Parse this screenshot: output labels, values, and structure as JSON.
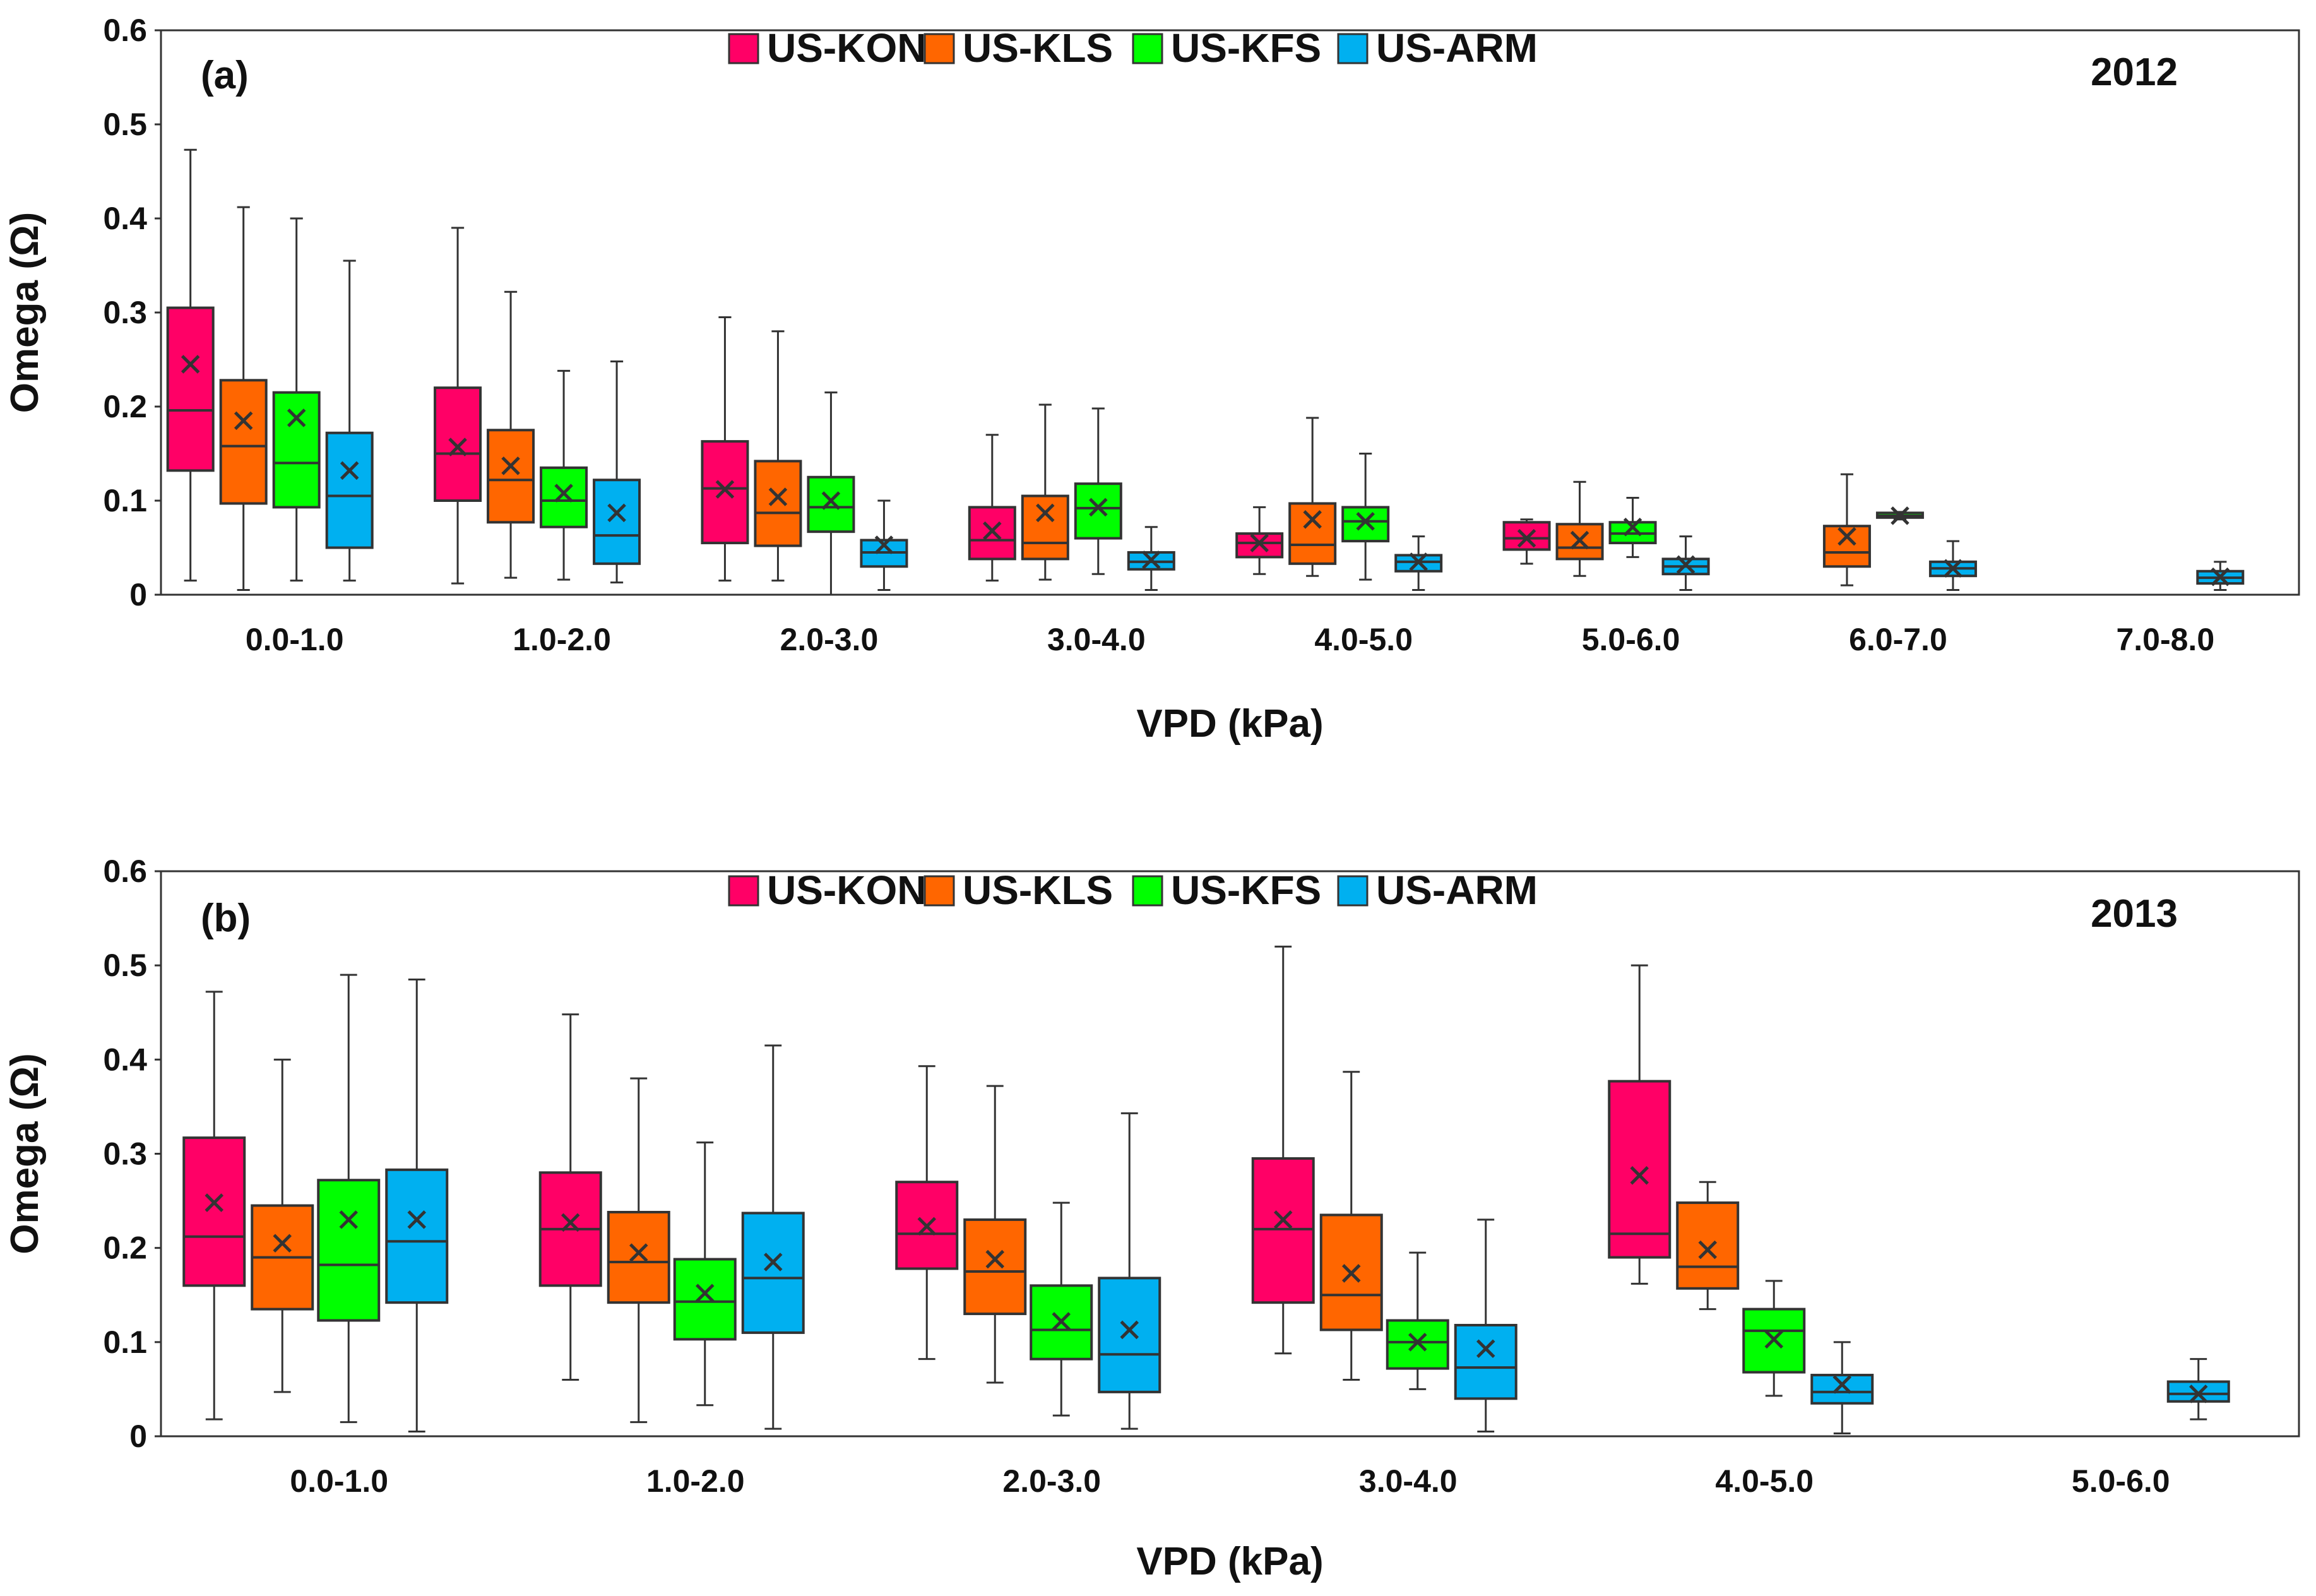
{
  "chart_data": [
    {
      "type": "box",
      "panel_label": "(a)",
      "year": "2012",
      "xlabel": "VPD (kPa)",
      "ylabel": "Omega (Ω)",
      "ylim": [
        0,
        0.6
      ],
      "yticks": [
        "0",
        "0.1",
        "0.2",
        "0.3",
        "0.4",
        "0.5",
        "0.6"
      ],
      "categories": [
        "0.0-1.0",
        "1.0-2.0",
        "2.0-3.0",
        "3.0-4.0",
        "4.0-5.0",
        "5.0-6.0",
        "6.0-7.0",
        "7.0-8.0"
      ],
      "series": [
        {
          "name": "US-KON",
          "color": "#ff0066",
          "boxes": [
            {
              "min": 0.015,
              "q1": 0.132,
              "median": 0.196,
              "q3": 0.305,
              "max": 0.473,
              "mean": 0.245
            },
            {
              "min": 0.012,
              "q1": 0.1,
              "median": 0.15,
              "q3": 0.22,
              "max": 0.39,
              "mean": 0.157
            },
            {
              "min": 0.015,
              "q1": 0.055,
              "median": 0.113,
              "q3": 0.163,
              "max": 0.295,
              "mean": 0.112
            },
            {
              "min": 0.015,
              "q1": 0.038,
              "median": 0.058,
              "q3": 0.093,
              "max": 0.17,
              "mean": 0.068
            },
            {
              "min": 0.022,
              "q1": 0.04,
              "median": 0.055,
              "q3": 0.065,
              "max": 0.093,
              "mean": 0.055
            },
            {
              "min": 0.033,
              "q1": 0.048,
              "median": 0.06,
              "q3": 0.077,
              "max": 0.08,
              "mean": 0.06
            },
            null,
            null
          ]
        },
        {
          "name": "US-KLS",
          "color": "#ff6600",
          "boxes": [
            {
              "min": 0.005,
              "q1": 0.097,
              "median": 0.158,
              "q3": 0.228,
              "max": 0.412,
              "mean": 0.185
            },
            {
              "min": 0.018,
              "q1": 0.077,
              "median": 0.122,
              "q3": 0.175,
              "max": 0.322,
              "mean": 0.137
            },
            {
              "min": 0.015,
              "q1": 0.052,
              "median": 0.087,
              "q3": 0.142,
              "max": 0.28,
              "mean": 0.104
            },
            {
              "min": 0.016,
              "q1": 0.038,
              "median": 0.055,
              "q3": 0.105,
              "max": 0.202,
              "mean": 0.087
            },
            {
              "min": 0.02,
              "q1": 0.033,
              "median": 0.053,
              "q3": 0.097,
              "max": 0.188,
              "mean": 0.08
            },
            {
              "min": 0.02,
              "q1": 0.038,
              "median": 0.05,
              "q3": 0.075,
              "max": 0.12,
              "mean": 0.058
            },
            {
              "min": 0.01,
              "q1": 0.03,
              "median": 0.045,
              "q3": 0.073,
              "max": 0.128,
              "mean": 0.062
            },
            null
          ]
        },
        {
          "name": "US-KFS",
          "color": "#00ff00",
          "boxes": [
            {
              "min": 0.015,
              "q1": 0.093,
              "median": 0.14,
              "q3": 0.215,
              "max": 0.4,
              "mean": 0.188
            },
            {
              "min": 0.016,
              "q1": 0.072,
              "median": 0.1,
              "q3": 0.135,
              "max": 0.238,
              "mean": 0.108
            },
            {
              "min": 0.0,
              "q1": 0.067,
              "median": 0.093,
              "q3": 0.125,
              "max": 0.215,
              "mean": 0.1
            },
            {
              "min": 0.022,
              "q1": 0.06,
              "median": 0.092,
              "q3": 0.118,
              "max": 0.198,
              "mean": 0.093
            },
            {
              "min": 0.016,
              "q1": 0.057,
              "median": 0.078,
              "q3": 0.093,
              "max": 0.15,
              "mean": 0.078
            },
            {
              "min": 0.04,
              "q1": 0.055,
              "median": 0.065,
              "q3": 0.077,
              "max": 0.103,
              "mean": 0.072
            },
            {
              "min": 0.08,
              "q1": 0.082,
              "median": 0.084,
              "q3": 0.087,
              "max": 0.088,
              "mean": 0.084
            },
            null
          ]
        },
        {
          "name": "US-ARM",
          "color": "#00b0f0",
          "boxes": [
            {
              "min": 0.015,
              "q1": 0.05,
              "median": 0.105,
              "q3": 0.172,
              "max": 0.355,
              "mean": 0.132
            },
            {
              "min": 0.013,
              "q1": 0.033,
              "median": 0.063,
              "q3": 0.122,
              "max": 0.248,
              "mean": 0.087
            },
            {
              "min": 0.005,
              "q1": 0.03,
              "median": 0.045,
              "q3": 0.058,
              "max": 0.1,
              "mean": 0.053
            },
            {
              "min": 0.005,
              "q1": 0.027,
              "median": 0.035,
              "q3": 0.045,
              "max": 0.072,
              "mean": 0.037
            },
            {
              "min": 0.005,
              "q1": 0.025,
              "median": 0.035,
              "q3": 0.042,
              "max": 0.062,
              "mean": 0.035
            },
            {
              "min": 0.005,
              "q1": 0.022,
              "median": 0.03,
              "q3": 0.038,
              "max": 0.062,
              "mean": 0.032
            },
            {
              "min": 0.005,
              "q1": 0.02,
              "median": 0.028,
              "q3": 0.035,
              "max": 0.057,
              "mean": 0.028
            },
            {
              "min": 0.005,
              "q1": 0.012,
              "median": 0.018,
              "q3": 0.025,
              "max": 0.035,
              "mean": 0.019
            }
          ]
        }
      ]
    },
    {
      "type": "box",
      "panel_label": "(b)",
      "year": "2013",
      "xlabel": "VPD (kPa)",
      "ylabel": "Omega (Ω)",
      "ylim": [
        0,
        0.6
      ],
      "yticks": [
        "0",
        "0.1",
        "0.2",
        "0.3",
        "0.4",
        "0.5",
        "0.6"
      ],
      "categories": [
        "0.0-1.0",
        "1.0-2.0",
        "2.0-3.0",
        "3.0-4.0",
        "4.0-5.0",
        "5.0-6.0"
      ],
      "series": [
        {
          "name": "US-KON",
          "color": "#ff0066",
          "boxes": [
            {
              "min": 0.018,
              "q1": 0.16,
              "median": 0.212,
              "q3": 0.317,
              "max": 0.472,
              "mean": 0.248
            },
            {
              "min": 0.06,
              "q1": 0.16,
              "median": 0.22,
              "q3": 0.28,
              "max": 0.448,
              "mean": 0.227
            },
            {
              "min": 0.082,
              "q1": 0.178,
              "median": 0.215,
              "q3": 0.27,
              "max": 0.393,
              "mean": 0.223
            },
            {
              "min": 0.088,
              "q1": 0.142,
              "median": 0.22,
              "q3": 0.295,
              "max": 0.52,
              "mean": 0.23
            },
            {
              "min": 0.162,
              "q1": 0.19,
              "median": 0.215,
              "q3": 0.377,
              "max": 0.5,
              "mean": 0.277
            },
            null
          ]
        },
        {
          "name": "US-KLS",
          "color": "#ff6600",
          "boxes": [
            {
              "min": 0.047,
              "q1": 0.135,
              "median": 0.19,
              "q3": 0.245,
              "max": 0.4,
              "mean": 0.205
            },
            {
              "min": 0.015,
              "q1": 0.142,
              "median": 0.185,
              "q3": 0.238,
              "max": 0.38,
              "mean": 0.195
            },
            {
              "min": 0.057,
              "q1": 0.13,
              "median": 0.175,
              "q3": 0.23,
              "max": 0.372,
              "mean": 0.188
            },
            {
              "min": 0.06,
              "q1": 0.113,
              "median": 0.15,
              "q3": 0.235,
              "max": 0.387,
              "mean": 0.173
            },
            {
              "min": 0.135,
              "q1": 0.157,
              "median": 0.18,
              "q3": 0.248,
              "max": 0.27,
              "mean": 0.198
            },
            null
          ]
        },
        {
          "name": "US-KFS",
          "color": "#00ff00",
          "boxes": [
            {
              "min": 0.015,
              "q1": 0.123,
              "median": 0.182,
              "q3": 0.272,
              "max": 0.49,
              "mean": 0.23
            },
            {
              "min": 0.033,
              "q1": 0.103,
              "median": 0.143,
              "q3": 0.188,
              "max": 0.312,
              "mean": 0.152
            },
            {
              "min": 0.022,
              "q1": 0.082,
              "median": 0.113,
              "q3": 0.16,
              "max": 0.248,
              "mean": 0.122
            },
            {
              "min": 0.05,
              "q1": 0.072,
              "median": 0.1,
              "q3": 0.123,
              "max": 0.195,
              "mean": 0.1
            },
            {
              "min": 0.043,
              "q1": 0.068,
              "median": 0.112,
              "q3": 0.135,
              "max": 0.165,
              "mean": 0.103
            },
            null
          ]
        },
        {
          "name": "US-ARM",
          "color": "#00b0f0",
          "boxes": [
            {
              "min": 0.005,
              "q1": 0.142,
              "median": 0.207,
              "q3": 0.283,
              "max": 0.485,
              "mean": 0.23
            },
            {
              "min": 0.008,
              "q1": 0.11,
              "median": 0.168,
              "q3": 0.237,
              "max": 0.415,
              "mean": 0.185
            },
            {
              "min": 0.008,
              "q1": 0.047,
              "median": 0.087,
              "q3": 0.168,
              "max": 0.343,
              "mean": 0.113
            },
            {
              "min": 0.005,
              "q1": 0.04,
              "median": 0.073,
              "q3": 0.118,
              "max": 0.23,
              "mean": 0.093
            },
            {
              "min": 0.003,
              "q1": 0.035,
              "median": 0.047,
              "q3": 0.065,
              "max": 0.1,
              "mean": 0.055
            },
            {
              "min": 0.018,
              "q1": 0.037,
              "median": 0.045,
              "q3": 0.058,
              "max": 0.082,
              "mean": 0.045
            }
          ]
        }
      ]
    }
  ]
}
